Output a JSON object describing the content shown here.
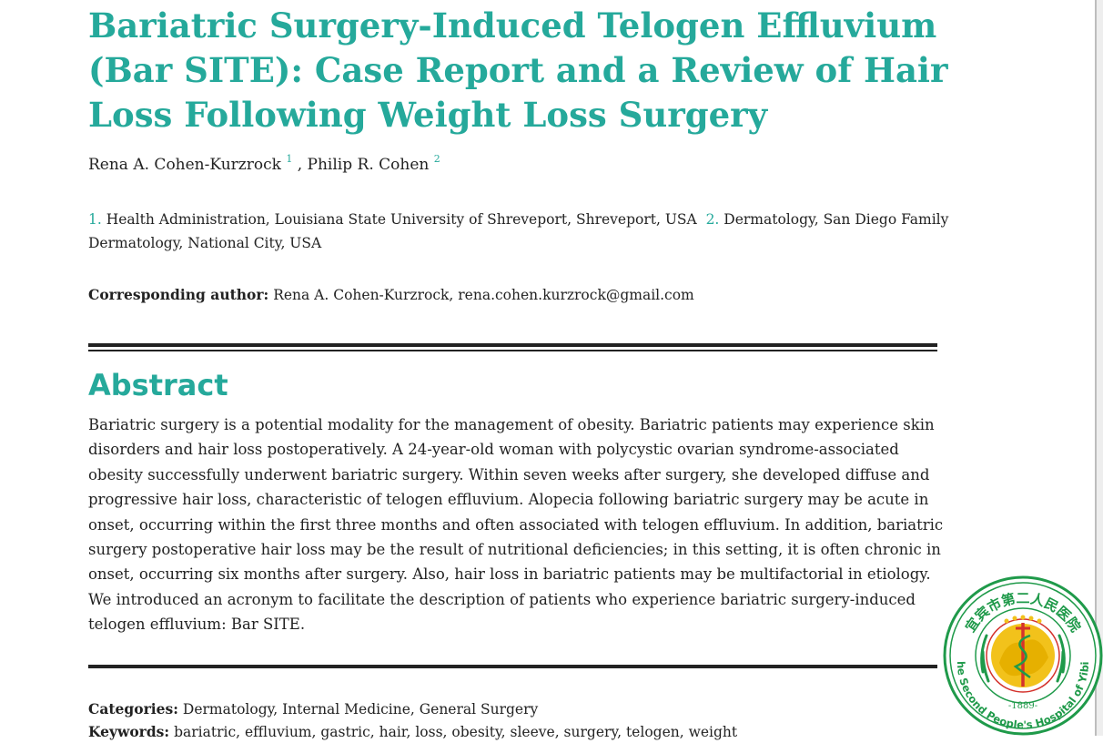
{
  "article": {
    "title": "Bariatric Surgery-Induced Telogen Effluvium (Bar SITE): Case Report and a Review of Hair Loss Following Weight Loss Surgery",
    "authors": [
      {
        "name": "Rena A. Cohen-Kurzrock",
        "affiliation_ref": "1"
      },
      {
        "name": "Philip R. Cohen",
        "affiliation_ref": "2"
      }
    ],
    "author_separator": ", ",
    "affiliations": [
      {
        "num": "1.",
        "text": "Health Administration, Louisiana State University of Shreveport, Shreveport, USA"
      },
      {
        "num": "2.",
        "text": "Dermatology, San Diego Family Dermatology, National City, USA"
      }
    ],
    "corresponding": {
      "label": "Corresponding author:",
      "text": "Rena A. Cohen-Kurzrock, rena.cohen.kurzrock@gmail.com"
    },
    "abstract": {
      "heading": "Abstract",
      "text": "Bariatric surgery is a potential modality for the management of obesity. Bariatric patients may experience skin disorders and hair loss postoperatively. A 24-year-old woman with polycystic ovarian syndrome-associated obesity successfully underwent bariatric surgery. Within seven weeks after surgery, she developed diffuse and progressive hair loss, characteristic of telogen effluvium. Alopecia following bariatric surgery may be acute in onset, occurring within the first three months and often associated with telogen effluvium. In addition, bariatric surgery postoperative hair loss may be the result of nutritional deficiencies; in this setting, it is often chronic in onset, occurring six months after surgery. Also, hair loss in bariatric patients may be multifactorial in etiology. We introduced an acronym to facilitate the description of patients who experience bariatric surgery-induced telogen effluvium: Bar SITE."
    },
    "categories": {
      "label": "Categories:",
      "text": "Dermatology, Internal Medicine, General Surgery"
    },
    "keywords": {
      "label": "Keywords:",
      "text": "bariatric, effluvium, gastric, hair, loss, obesity, sleeve, surgery, telogen, weight"
    }
  },
  "seal": {
    "top_text": "宜宾市第二人民医院",
    "bottom_text": "The Second People's Hospital of Yibin",
    "year": "-1889-",
    "colors": {
      "green": "#1f9a4a",
      "gold": "#f2c21b",
      "red": "#d4322c"
    }
  },
  "colors": {
    "accent": "#25a99b",
    "text": "#222222"
  }
}
